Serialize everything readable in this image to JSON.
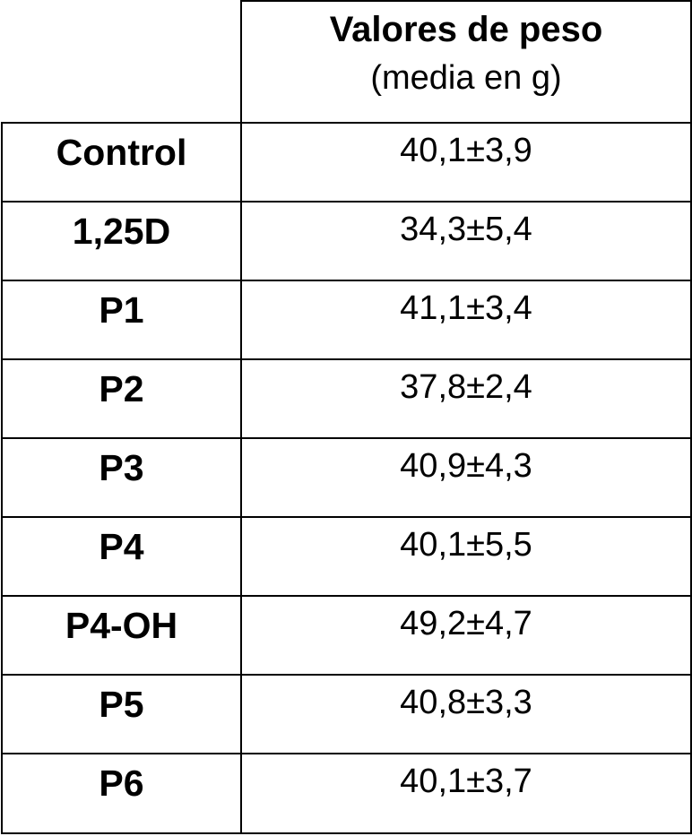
{
  "table": {
    "header": [
      "Valores de peso",
      "(media en g)"
    ],
    "rows": [
      [
        "Control",
        "40,1±3,9"
      ],
      [
        "1,25D",
        "34,3±5,4"
      ],
      [
        "P1",
        "41,1±3,4"
      ],
      [
        "P2",
        "37,8±2,4"
      ],
      [
        "P3",
        "40,9±4,3"
      ],
      [
        "P4",
        "40,1±5,5"
      ],
      [
        "P4-OH",
        "49,2±4,7"
      ],
      [
        "P5",
        "40,8±3,3"
      ],
      [
        "P6",
        "40,1±3,7"
      ]
    ]
  }
}
